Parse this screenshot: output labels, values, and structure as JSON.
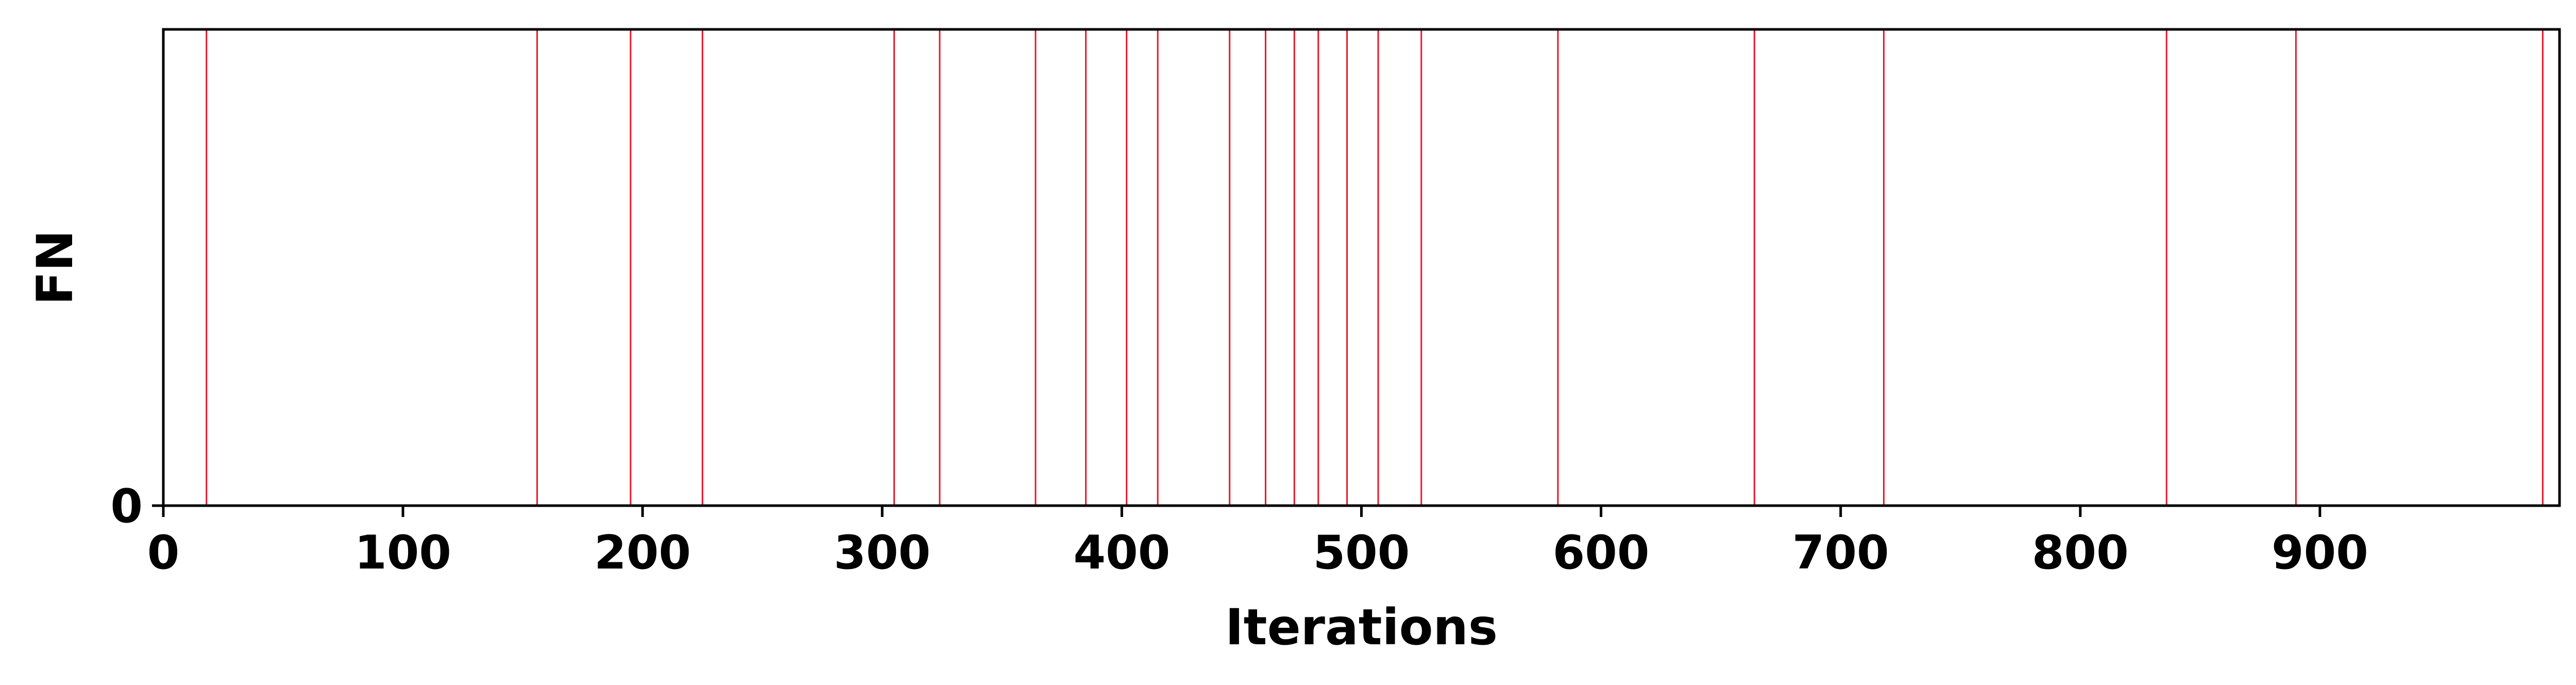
{
  "chart_data": {
    "type": "event-lines",
    "xlabel": "Iterations",
    "ylabel": "FN",
    "xlim": [
      0,
      1000
    ],
    "x_ticks": [
      0,
      100,
      200,
      300,
      400,
      500,
      600,
      700,
      800,
      900
    ],
    "y_ticks": [
      0
    ],
    "grid": false,
    "colors": {
      "event": "#e8172a",
      "axis": "#000000"
    },
    "series": [
      {
        "values": [
          18,
          156,
          195,
          225,
          305,
          324,
          364,
          385,
          402,
          415,
          445,
          460,
          472,
          482,
          494,
          507,
          525,
          582,
          664,
          718,
          836,
          890,
          993
        ]
      }
    ]
  }
}
